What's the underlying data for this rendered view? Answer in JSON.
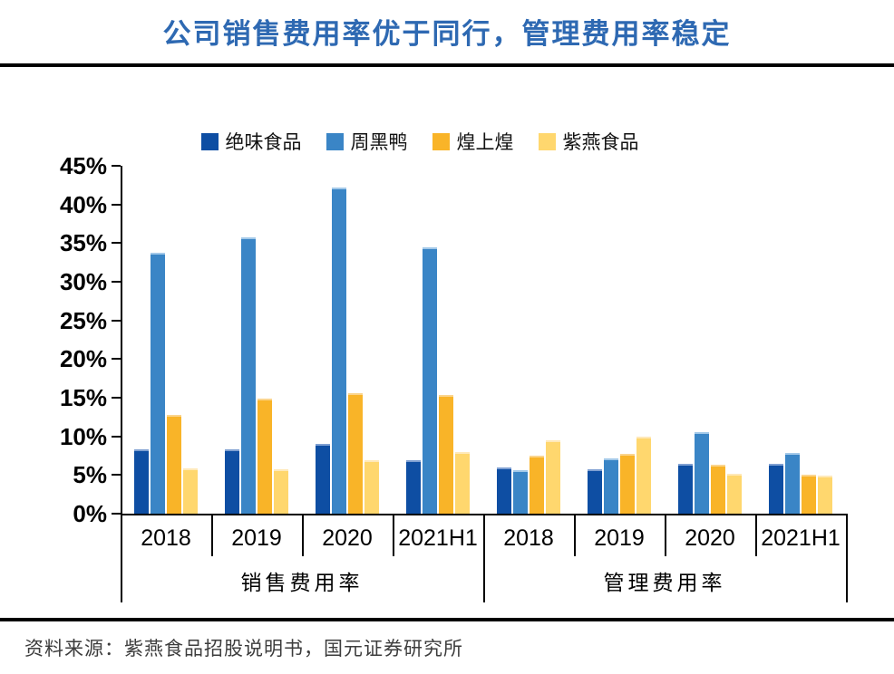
{
  "title": "公司销售费用率优于同行，管理费用率稳定",
  "source_note": "资料来源：紫燕食品招股说明书，国元证券研究所",
  "chart_data": {
    "type": "bar",
    "title": "公司销售费用率优于同行，管理费用率稳定",
    "categories": [
      "2018",
      "2019",
      "2020",
      "2021H1",
      "2018",
      "2019",
      "2020",
      "2021H1"
    ],
    "category_groups": [
      {
        "label": "销售费用率",
        "span": [
          0,
          3
        ]
      },
      {
        "label": "管理费用率",
        "span": [
          4,
          7
        ]
      }
    ],
    "series": [
      {
        "name": "绝味食品",
        "color": "#0E4EA3",
        "edge_color": "#7FA0D2",
        "values": [
          8.3,
          8.3,
          9.0,
          6.9,
          6.0,
          5.8,
          6.4,
          6.4
        ]
      },
      {
        "name": "周黑鸭",
        "color": "#3A85C6",
        "edge_color": "#A3C9E9",
        "values": [
          33.8,
          35.7,
          42.2,
          34.5,
          5.6,
          7.1,
          10.5,
          7.8
        ]
      },
      {
        "name": "煌上煌",
        "color": "#F9B428",
        "edge_color": "#FBD58E",
        "values": [
          12.8,
          14.9,
          15.6,
          15.3,
          7.5,
          7.7,
          6.3,
          5.0
        ]
      },
      {
        "name": "紫燕食品",
        "color": "#FFD76E",
        "edge_color": "#FFE9B9",
        "values": [
          5.9,
          5.7,
          6.9,
          8.0,
          9.5,
          10.0,
          5.1,
          4.9
        ]
      }
    ],
    "ylim": [
      0,
      45
    ],
    "ytick_step": 5,
    "ytick_suffix": "%",
    "grid": false,
    "legend_position": "top-center",
    "unit": "percent",
    "accent_title_color": "#2E69B2"
  }
}
